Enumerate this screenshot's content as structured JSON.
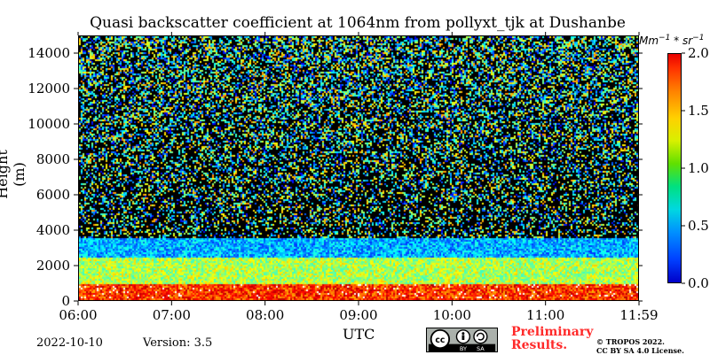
{
  "chart_data": {
    "type": "heatmap",
    "title": "Quasi backscatter coefficient at 1064nm from pollyxt_tjk at Dushanbe",
    "xlabel": "UTC",
    "ylabel": "Height (m)",
    "x_ticks": [
      "06:00",
      "07:00",
      "08:00",
      "09:00",
      "10:00",
      "11:00",
      "11:59"
    ],
    "x_range": [
      "06:00",
      "11:59"
    ],
    "y_ticks": [
      0,
      2000,
      4000,
      6000,
      8000,
      10000,
      12000,
      14000
    ],
    "y_range": [
      0,
      15000
    ],
    "colorbar": {
      "unit": "Mm^-1 * sr^-1",
      "ticks": [
        "0.0",
        "0.5",
        "1.0",
        "1.5",
        "2.0"
      ],
      "range": [
        0,
        2
      ],
      "colormap": "jet"
    },
    "layers": [
      {
        "base_m": 0,
        "top_m": 1000,
        "value": 1.9
      },
      {
        "base_m": 1000,
        "top_m": 2600,
        "value": 1.1
      },
      {
        "base_m": 2600,
        "top_m": 3700,
        "value": 0.6
      },
      {
        "base_m": 3700,
        "top_m": 15000,
        "value": 0.2
      }
    ]
  },
  "footer": {
    "date": "2022-10-10",
    "version": "Version: 3.5",
    "preliminary_line1": "Preliminary",
    "preliminary_line2": "Results.",
    "copyright_line1": "© TROPOS 2022.",
    "copyright_line2": "CC BY SA 4.0 License.",
    "license_badge": {
      "cc": "cc",
      "by": "BY",
      "sa": "SA"
    }
  }
}
